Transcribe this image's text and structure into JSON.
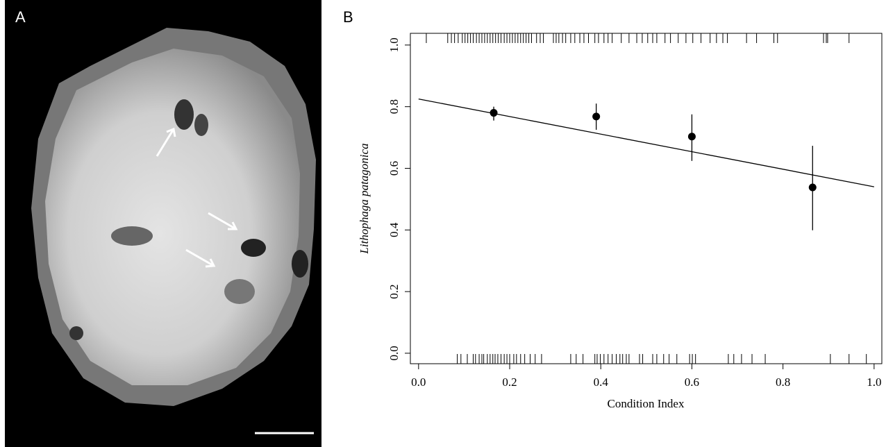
{
  "panel_labels": [
    "A",
    "B"
  ],
  "chart_data": {
    "type": "scatter",
    "x_label": "Condition Index",
    "y_label": "Lithophaga patagonica",
    "xlim": [
      -0.018,
      1.017
    ],
    "ylim": [
      -0.034,
      1.038
    ],
    "xticks": [
      {
        "value": 0,
        "label": "0.0"
      },
      0.2,
      0.4,
      0.6,
      0.8,
      {
        "value": 1,
        "label": "1.0"
      }
    ],
    "yticks": [
      {
        "value": 0,
        "label": "0.0"
      },
      0.2,
      0.4,
      0.6,
      0.8,
      {
        "value": 1,
        "label": "1.0"
      }
    ],
    "points": {
      "x": [
        0.165,
        0.39,
        0.6,
        0.865
      ],
      "y": [
        0.78,
        0.768,
        0.703,
        0.538
      ],
      "lower": [
        0.755,
        0.725,
        0.624,
        0.399
      ],
      "upper": [
        0.8,
        0.81,
        0.775,
        0.673
      ],
      "color": "#000000"
    },
    "fit": {
      "x": [
        0,
        1
      ],
      "y": [
        0.825,
        0.54
      ]
    },
    "rug_top": [
      0.017,
      0.064,
      0.072,
      0.079,
      0.087,
      0.096,
      0.102,
      0.108,
      0.114,
      0.12,
      0.127,
      0.133,
      0.139,
      0.145,
      0.151,
      0.157,
      0.163,
      0.169,
      0.175,
      0.181,
      0.188,
      0.194,
      0.2,
      0.206,
      0.212,
      0.218,
      0.224,
      0.23,
      0.236,
      0.242,
      0.248,
      0.259,
      0.267,
      0.274,
      0.296,
      0.302,
      0.308,
      0.316,
      0.323,
      0.334,
      0.343,
      0.354,
      0.363,
      0.373,
      0.387,
      0.395,
      0.407,
      0.416,
      0.425,
      0.445,
      0.462,
      0.479,
      0.491,
      0.503,
      0.514,
      0.523,
      0.541,
      0.553,
      0.57,
      0.587,
      0.602,
      0.62,
      0.64,
      0.654,
      0.668,
      0.678,
      0.72,
      0.742,
      0.78,
      0.788,
      0.889,
      0.895,
      0.898,
      0.945
    ],
    "rug_bottom": [
      0.085,
      0.093,
      0.107,
      0.12,
      0.125,
      0.133,
      0.139,
      0.143,
      0.151,
      0.157,
      0.163,
      0.168,
      0.174,
      0.181,
      0.188,
      0.194,
      0.2,
      0.209,
      0.215,
      0.224,
      0.233,
      0.245,
      0.256,
      0.27,
      0.334,
      0.346,
      0.361,
      0.387,
      0.392,
      0.399,
      0.407,
      0.416,
      0.425,
      0.434,
      0.442,
      0.448,
      0.456,
      0.462,
      0.485,
      0.492,
      0.514,
      0.523,
      0.538,
      0.55,
      0.567,
      0.595,
      0.601,
      0.608,
      0.68,
      0.692,
      0.709,
      0.732,
      0.761,
      0.904,
      0.945,
      0.983
    ]
  }
}
